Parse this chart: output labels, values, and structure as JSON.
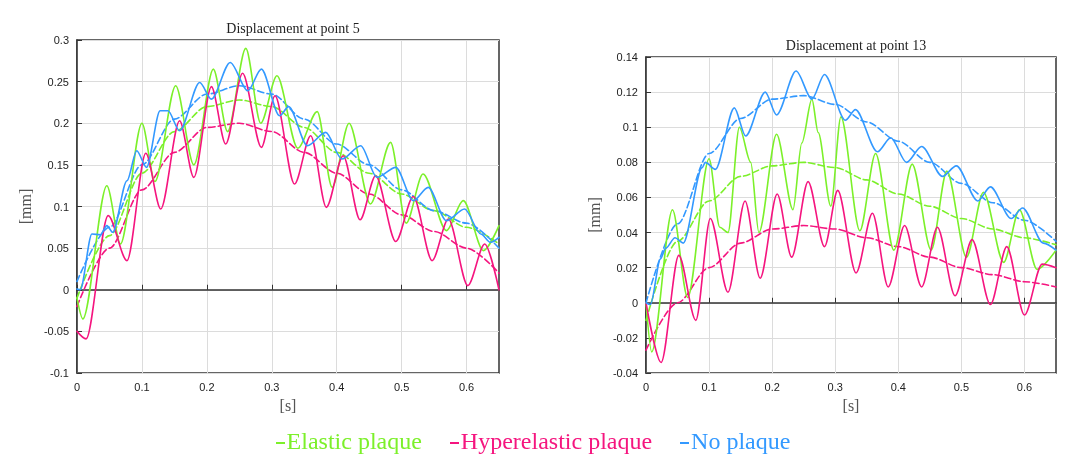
{
  "chart_data": [
    {
      "type": "line",
      "title": "Displacement at point 5",
      "xlabel": "[s]",
      "ylabel": "[mm]",
      "xlim": [
        0,
        0.65
      ],
      "xticks": [
        0,
        0.1,
        0.2,
        0.3,
        0.4,
        0.5,
        0.6
      ],
      "ylim": [
        -0.1,
        0.3
      ],
      "yticks": [
        -0.1,
        -0.05,
        0,
        0.05,
        0.1,
        0.15,
        0.2,
        0.25,
        0.3
      ],
      "grid": true,
      "legend": "bottom",
      "marker": "none",
      "series": [
        {
          "name": "Elastic plaque",
          "color": "#7cf02a",
          "line_style": "solid",
          "x": [
            0,
            0.009,
            0.046,
            0.067,
            0.1,
            0.12,
            0.152,
            0.18,
            0.21,
            0.232,
            0.26,
            0.283,
            0.308,
            0.34,
            0.37,
            0.393,
            0.419,
            0.452,
            0.483,
            0.507,
            0.533,
            0.569,
            0.595,
            0.626,
            0.65
          ],
          "values": [
            -0.01,
            -0.035,
            0.125,
            0.055,
            0.2,
            0.13,
            0.245,
            0.15,
            0.265,
            0.19,
            0.29,
            0.2,
            0.257,
            0.17,
            0.214,
            0.123,
            0.2,
            0.103,
            0.177,
            0.08,
            0.139,
            0.071,
            0.107,
            0.047,
            0.077
          ]
        },
        {
          "name": "Hyperelastic plaque",
          "color": "#f5157f",
          "line_style": "solid",
          "x": [
            0,
            0.014,
            0.048,
            0.077,
            0.106,
            0.129,
            0.158,
            0.18,
            0.207,
            0.229,
            0.255,
            0.284,
            0.305,
            0.335,
            0.36,
            0.384,
            0.41,
            0.436,
            0.46,
            0.491,
            0.518,
            0.547,
            0.572,
            0.602,
            0.628,
            0.65
          ],
          "values": [
            -0.05,
            -0.059,
            0.089,
            0.035,
            0.164,
            0.097,
            0.203,
            0.135,
            0.244,
            0.175,
            0.26,
            0.171,
            0.233,
            0.127,
            0.185,
            0.099,
            0.161,
            0.084,
            0.137,
            0.058,
            0.112,
            0.035,
            0.085,
            0.005,
            0.055,
            0.0
          ]
        },
        {
          "name": "No plaque",
          "color": "#3399ff",
          "line_style": "solid",
          "x": [
            0,
            0.005,
            0.023,
            0.036,
            0.046,
            0.055,
            0.077,
            0.092,
            0.107,
            0.128,
            0.14,
            0.158,
            0.189,
            0.207,
            0.236,
            0.263,
            0.284,
            0.312,
            0.326,
            0.355,
            0.383,
            0.408,
            0.437,
            0.462,
            0.491,
            0.518,
            0.541,
            0.569,
            0.597,
            0.622,
            0.637,
            0.65
          ],
          "values": [
            0.001,
            0.0,
            0.067,
            0.066,
            0.077,
            0.069,
            0.131,
            0.167,
            0.147,
            0.215,
            0.215,
            0.191,
            0.249,
            0.229,
            0.273,
            0.239,
            0.265,
            0.209,
            0.22,
            0.173,
            0.189,
            0.157,
            0.173,
            0.135,
            0.147,
            0.107,
            0.123,
            0.083,
            0.097,
            0.067,
            0.057,
            0.063
          ]
        },
        {
          "color": "#7cf02a",
          "line_style": "dashed",
          "x": [
            0,
            0.05,
            0.1,
            0.15,
            0.2,
            0.25,
            0.3,
            0.35,
            0.4,
            0.45,
            0.5,
            0.55,
            0.6,
            0.65
          ],
          "values": [
            -0.01,
            0.065,
            0.14,
            0.19,
            0.22,
            0.228,
            0.22,
            0.195,
            0.165,
            0.14,
            0.115,
            0.095,
            0.075,
            0.055
          ]
        },
        {
          "color": "#f5157f",
          "line_style": "dashed",
          "x": [
            0,
            0.05,
            0.1,
            0.15,
            0.2,
            0.25,
            0.3,
            0.35,
            0.4,
            0.45,
            0.5,
            0.55,
            0.6,
            0.65
          ],
          "values": [
            -0.02,
            0.05,
            0.12,
            0.165,
            0.195,
            0.2,
            0.19,
            0.165,
            0.14,
            0.115,
            0.09,
            0.07,
            0.05,
            0.02
          ]
        },
        {
          "color": "#3399ff",
          "line_style": "dashed",
          "x": [
            0,
            0.05,
            0.1,
            0.15,
            0.2,
            0.25,
            0.3,
            0.35,
            0.4,
            0.45,
            0.5,
            0.55,
            0.6,
            0.65
          ],
          "values": [
            0.01,
            0.075,
            0.15,
            0.205,
            0.235,
            0.245,
            0.235,
            0.205,
            0.175,
            0.15,
            0.12,
            0.095,
            0.08,
            0.05
          ]
        }
      ]
    },
    {
      "type": "line",
      "title": "Displacement at point 13",
      "xlabel": "[s]",
      "ylabel": "[mm]",
      "xlim": [
        0,
        0.65
      ],
      "xticks": [
        0,
        0.1,
        0.2,
        0.3,
        0.4,
        0.5,
        0.6
      ],
      "ylim": [
        -0.04,
        0.14
      ],
      "yticks": [
        -0.04,
        -0.02,
        0,
        0.02,
        0.04,
        0.06,
        0.08,
        0.1,
        0.12,
        0.14
      ],
      "grid": true,
      "marker": "none",
      "series": [
        {
          "color": "#7cf02a",
          "line_style": "solid",
          "x": [
            0,
            0.009,
            0.042,
            0.066,
            0.1,
            0.117,
            0.13,
            0.148,
            0.166,
            0.179,
            0.207,
            0.233,
            0.247,
            0.263,
            0.273,
            0.293,
            0.309,
            0.339,
            0.364,
            0.393,
            0.422,
            0.452,
            0.477,
            0.508,
            0.535,
            0.567,
            0.592,
            0.62,
            0.65
          ],
          "values": [
            0,
            -0.028,
            0.053,
            0.003,
            0.082,
            0.043,
            0.04,
            0.1,
            0.08,
            0.04,
            0.096,
            0.053,
            0.091,
            0.116,
            0.097,
            0.055,
            0.106,
            0.041,
            0.085,
            0.03,
            0.079,
            0.03,
            0.075,
            0.026,
            0.063,
            0.023,
            0.053,
            0.019,
            0.03
          ]
        },
        {
          "color": "#f5157f",
          "line_style": "solid",
          "x": [
            0,
            0.024,
            0.052,
            0.079,
            0.102,
            0.13,
            0.157,
            0.181,
            0.208,
            0.231,
            0.257,
            0.283,
            0.304,
            0.333,
            0.359,
            0.384,
            0.41,
            0.437,
            0.462,
            0.49,
            0.517,
            0.546,
            0.572,
            0.6,
            0.628,
            0.65
          ],
          "values": [
            0,
            -0.034,
            0.027,
            -0.01,
            0.048,
            0.006,
            0.058,
            0.014,
            0.062,
            0.026,
            0.069,
            0.032,
            0.064,
            0.017,
            0.051,
            0.009,
            0.044,
            0.009,
            0.043,
            0.004,
            0.036,
            -0.001,
            0.032,
            -0.007,
            0.022,
            0.02
          ]
        },
        {
          "color": "#3399ff",
          "line_style": "solid",
          "x": [
            0,
            0.007,
            0.023,
            0.031,
            0.046,
            0.059,
            0.089,
            0.094,
            0.11,
            0.14,
            0.158,
            0.189,
            0.207,
            0.238,
            0.263,
            0.283,
            0.316,
            0.332,
            0.367,
            0.388,
            0.413,
            0.437,
            0.47,
            0.492,
            0.526,
            0.546,
            0.579,
            0.597,
            0.63,
            0.65
          ],
          "values": [
            0,
            -0.001,
            0.025,
            0.031,
            0.037,
            0.034,
            0.077,
            0.08,
            0.076,
            0.111,
            0.095,
            0.12,
            0.107,
            0.132,
            0.116,
            0.13,
            0.104,
            0.11,
            0.086,
            0.094,
            0.08,
            0.089,
            0.072,
            0.078,
            0.058,
            0.066,
            0.048,
            0.054,
            0.034,
            0.03
          ]
        },
        {
          "color": "#7cf02a",
          "line_style": "dashed",
          "x": [
            0,
            0.05,
            0.1,
            0.15,
            0.2,
            0.25,
            0.3,
            0.35,
            0.4,
            0.45,
            0.5,
            0.55,
            0.6,
            0.65
          ],
          "values": [
            -0.01,
            0.035,
            0.058,
            0.072,
            0.078,
            0.08,
            0.077,
            0.07,
            0.062,
            0.055,
            0.048,
            0.042,
            0.037,
            0.033
          ]
        },
        {
          "color": "#f5157f",
          "line_style": "dashed",
          "x": [
            0,
            0.05,
            0.1,
            0.15,
            0.2,
            0.25,
            0.3,
            0.35,
            0.4,
            0.45,
            0.5,
            0.55,
            0.6,
            0.65
          ],
          "values": [
            -0.027,
            0.0,
            0.02,
            0.034,
            0.042,
            0.044,
            0.042,
            0.037,
            0.032,
            0.026,
            0.02,
            0.016,
            0.012,
            0.009
          ]
        },
        {
          "color": "#3399ff",
          "line_style": "dashed",
          "x": [
            0,
            0.05,
            0.1,
            0.15,
            0.2,
            0.25,
            0.3,
            0.35,
            0.4,
            0.45,
            0.5,
            0.55,
            0.6,
            0.65
          ],
          "values": [
            0,
            0.045,
            0.085,
            0.105,
            0.116,
            0.118,
            0.113,
            0.103,
            0.092,
            0.08,
            0.068,
            0.057,
            0.047,
            0.035
          ]
        }
      ]
    }
  ]
}
